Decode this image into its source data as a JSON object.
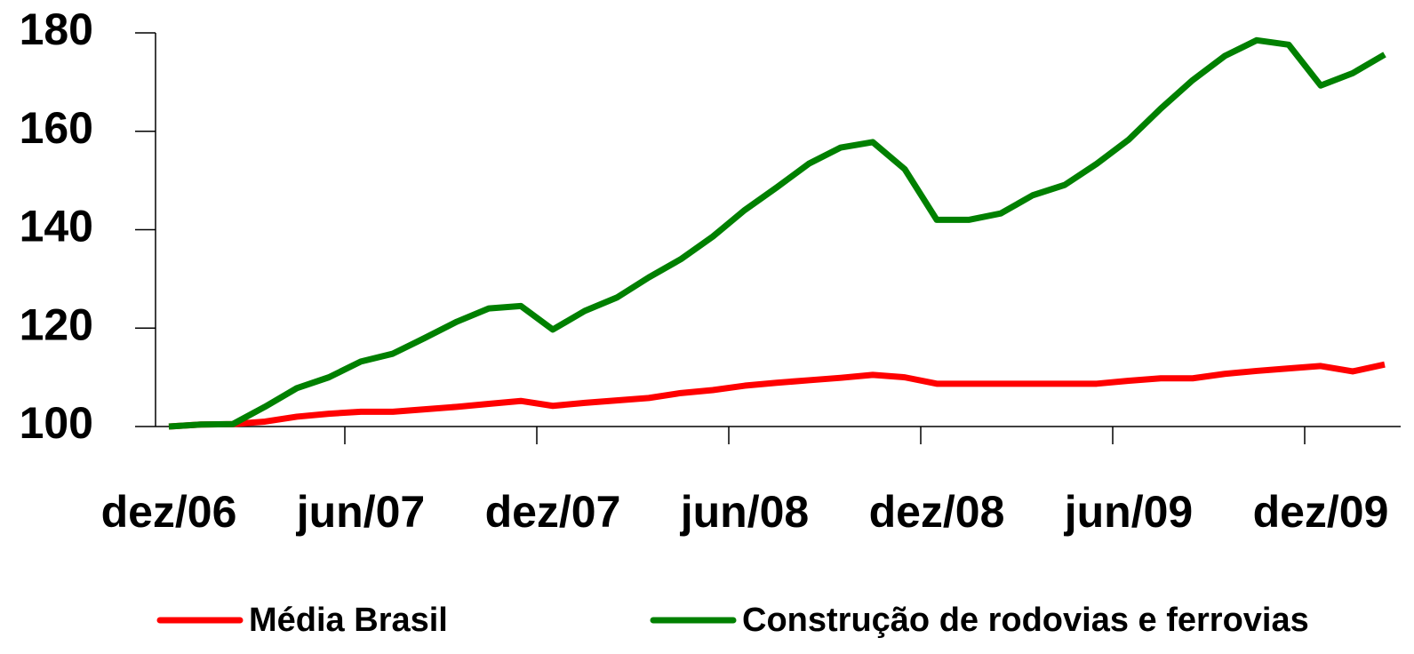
{
  "chart_data": {
    "type": "line",
    "categories": [
      "dez/06",
      null,
      null,
      null,
      null,
      null,
      "jun/07",
      null,
      null,
      null,
      null,
      null,
      "dez/07",
      null,
      null,
      null,
      null,
      null,
      "jun/08",
      null,
      null,
      null,
      null,
      null,
      "dez/08",
      null,
      null,
      null,
      null,
      null,
      "jun/09",
      null,
      null,
      null,
      null,
      null,
      "dez/09",
      null,
      null
    ],
    "series": [
      {
        "name": "Média Brasil",
        "color": "#ff0000",
        "values": [
          100,
          100.4,
          100.5,
          101,
          102,
          102.6,
          103,
          103,
          103.5,
          104,
          104.6,
          105.2,
          104.2,
          104.8,
          105.3,
          105.8,
          106.8,
          107.4,
          108.3,
          108.9,
          109.4,
          109.9,
          110.5,
          110,
          108.7,
          108.7,
          108.7,
          108.7,
          108.7,
          108.7,
          109.3,
          109.8,
          109.8,
          110.7,
          111.3,
          111.8,
          112.3,
          111.2,
          112.6
        ]
      },
      {
        "name": "Construção de rodovias e ferrovias",
        "color": "#008000",
        "values": [
          100,
          100.4,
          100.5,
          104,
          107.8,
          110,
          113.2,
          114.8,
          118,
          121.3,
          124,
          124.5,
          119.7,
          123.5,
          126.2,
          130.3,
          134,
          138.6,
          144,
          148.6,
          153.4,
          156.7,
          157.8,
          152.3,
          142,
          142,
          143.3,
          147,
          149.1,
          153.4,
          158.3,
          164.6,
          170.4,
          175.3,
          178.5,
          177.6,
          169.3,
          171.8,
          175.6
        ]
      }
    ],
    "ylim": [
      100,
      180
    ],
    "yticks": [
      100,
      120,
      140,
      160,
      180
    ],
    "grid": false,
    "legend": "bottom"
  }
}
